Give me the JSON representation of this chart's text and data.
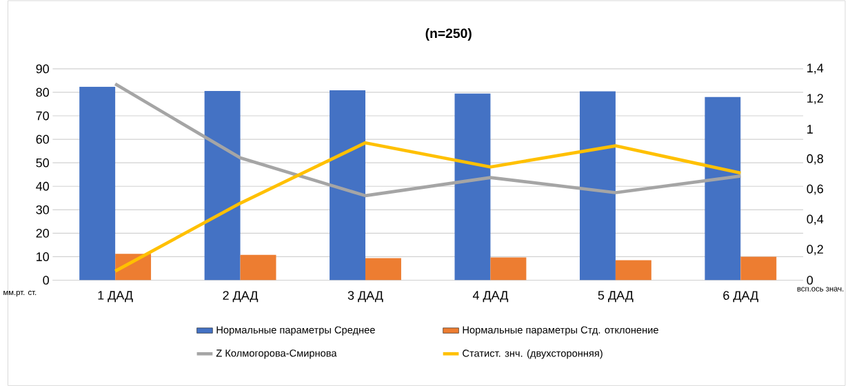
{
  "chart_data": {
    "type": "bar",
    "title": "**(n=250)**",
    "ylabel": "мм.рт. ст.",
    "y2label": "всп.ось знач.",
    "categories": [
      "1 ДАД",
      "2 ДАД",
      "3 ДАД",
      "4 ДАД",
      "5 ДАД",
      "6 ДАД"
    ],
    "series": [
      {
        "name": "Нормальные параметры Среднее",
        "color": "#4472c4",
        "values": [
          82.4,
          80.6,
          80.9,
          79.5,
          80.4,
          78.0
        ]
      },
      {
        "name": "Нормальные параметры Стд. отклонение",
        "color": "#ed7d31",
        "values": [
          11.2,
          10.8,
          9.4,
          9.7,
          8.5,
          10.0
        ]
      },
      {
        "name": "Z Колмогорова-Смирнова",
        "type": "line",
        "axis": "y2",
        "color": "#a5a5a5",
        "values": [
          1.3,
          0.81,
          0.56,
          0.68,
          0.58,
          0.69
        ]
      },
      {
        "name": "Статист. знч. (двухсторонняя)",
        "type": "line",
        "axis": "y2",
        "color": "#ffc000",
        "values": [
          0.06,
          0.51,
          0.91,
          0.75,
          0.89,
          0.71
        ]
      }
    ],
    "ylim": [
      0,
      90
    ],
    "yticks": [
      0,
      10,
      20,
      30,
      40,
      50,
      60,
      70,
      80,
      90
    ],
    "y2lim": [
      0,
      1.4
    ],
    "y2ticks": [
      0,
      {
        "value": 0.2,
        "label": "0,2"
      },
      {
        "value": 0.4,
        "label": "0,4"
      },
      {
        "value": 0.6,
        "label": "0,6"
      },
      {
        "value": 0.8,
        "label": "0,8"
      },
      1,
      {
        "value": 1.2,
        "label": "1,2"
      },
      {
        "value": 1.4,
        "label": "1,4"
      }
    ],
    "grid": "y",
    "legend": "bottom",
    "marker": "none",
    "line_style": "solid"
  }
}
